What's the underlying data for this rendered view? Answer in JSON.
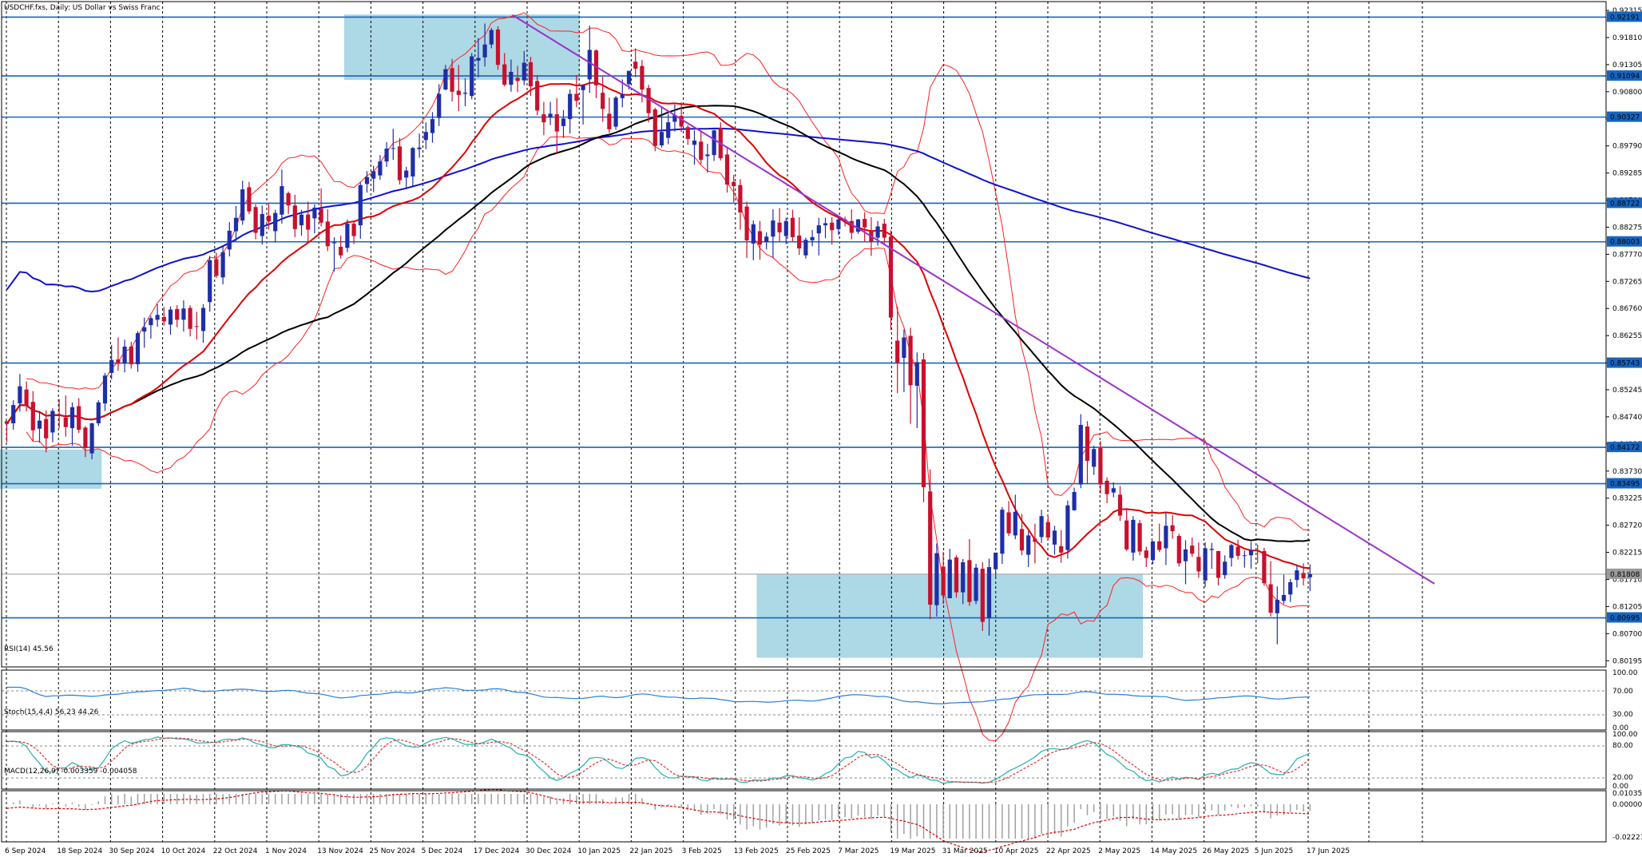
{
  "header": {
    "title": "USDCHF.fxs, Daily:  US Dollar vs Swiss Franc"
  },
  "indicators": {
    "rsi_label": "RSI(14) 45.56",
    "stoch_label": "Stoch(15,4,4) 56.23 44.26",
    "macd_label": "MACD(12,26,9) -0.003359 -0.004058"
  },
  "colors": {
    "background": "#ffffff",
    "bull_candle": "#1f2ea8",
    "bear_candle": "#c8102e",
    "support_resistance": "#1565c0",
    "zone_fill": "#add8e6",
    "trendline": "#9932cc",
    "ma_fast": "#e00000",
    "ma_mid": "#000000",
    "ma_slow": "#1010d0",
    "bollinger": "#ff2020",
    "rsi_line": "#2a7fd4",
    "stoch_main": "#20b2aa",
    "stoch_signal": "#e03030",
    "macd": "#a0a0a0"
  },
  "chart_data": {
    "type": "candlestick",
    "symbol": "USDCHF.fxs",
    "timeframe": "Daily",
    "ylim": [
      0.8005,
      0.9245
    ],
    "y_ticks": [
      "0.92315",
      "0.91810",
      "0.91305",
      "0.90800",
      "0.90295",
      "0.89790",
      "0.89285",
      "0.88780",
      "0.88275",
      "0.87770",
      "0.87265",
      "0.86760",
      "0.86255",
      "0.85750",
      "0.85245",
      "0.84740",
      "0.84235",
      "0.83730",
      "0.83225",
      "0.82720",
      "0.82215",
      "0.81710",
      "0.81205",
      "0.80700",
      "0.80195"
    ],
    "x_ticks": [
      "6 Sep 2024",
      "18 Sep 2024",
      "30 Sep 2024",
      "10 Oct 2024",
      "22 Oct 2024",
      "1 Nov 2024",
      "13 Nov 2024",
      "25 Nov 2024",
      "5 Dec 2024",
      "17 Dec 2024",
      "30 Dec 2024",
      "10 Jan 2025",
      "22 Jan 2025",
      "3 Feb 2025",
      "13 Feb 2025",
      "25 Feb 2025",
      "7 Mar 2025",
      "19 Mar 2025",
      "31 Mar 2025",
      "10 Apr 2025",
      "22 Apr 2025",
      "2 May 2025",
      "14 May 2025",
      "26 May 2025",
      "5 Jun 2025",
      "17 Jun 2025"
    ],
    "levels": [
      "0.92191",
      "0.91094",
      "0.90327",
      "0.88722",
      "0.88003",
      "0.85743",
      "0.84172",
      "0.83495",
      "0.80995"
    ],
    "current_price": "0.81808",
    "candles": [
      [
        0.8466,
        0.8466,
        0.8427,
        0.8461
      ],
      [
        0.8462,
        0.8505,
        0.845,
        0.8496
      ],
      [
        0.8499,
        0.8554,
        0.8484,
        0.8531
      ],
      [
        0.8525,
        0.854,
        0.8484,
        0.8494
      ],
      [
        0.8502,
        0.8522,
        0.8429,
        0.8449
      ],
      [
        0.8452,
        0.8485,
        0.8426,
        0.8467
      ],
      [
        0.847,
        0.8486,
        0.8408,
        0.8434
      ],
      [
        0.8445,
        0.849,
        0.8427,
        0.8485
      ],
      [
        0.8479,
        0.8507,
        0.8453,
        0.8477
      ],
      [
        0.8473,
        0.8514,
        0.8437,
        0.8455
      ],
      [
        0.8453,
        0.8501,
        0.842,
        0.8492
      ],
      [
        0.8494,
        0.8509,
        0.8444,
        0.845
      ],
      [
        0.8454,
        0.8457,
        0.8399,
        0.8416
      ],
      [
        0.8406,
        0.8463,
        0.8395,
        0.8462
      ],
      [
        0.8462,
        0.8505,
        0.8457,
        0.8501
      ],
      [
        0.8499,
        0.8556,
        0.8485,
        0.8551
      ],
      [
        0.8556,
        0.8608,
        0.8544,
        0.858
      ],
      [
        0.8581,
        0.8622,
        0.856,
        0.8573
      ],
      [
        0.8573,
        0.8618,
        0.8557,
        0.8605
      ],
      [
        0.8605,
        0.8614,
        0.8564,
        0.8572
      ],
      [
        0.8572,
        0.8634,
        0.8558,
        0.863
      ],
      [
        0.8633,
        0.8659,
        0.8603,
        0.8641
      ],
      [
        0.8645,
        0.8662,
        0.862,
        0.8658
      ],
      [
        0.8655,
        0.8684,
        0.8642,
        0.8664
      ],
      [
        0.866,
        0.8679,
        0.8644,
        0.8652
      ],
      [
        0.8646,
        0.868,
        0.8627,
        0.8674
      ],
      [
        0.8675,
        0.8682,
        0.8641,
        0.8655
      ],
      [
        0.8655,
        0.8691,
        0.8633,
        0.8676
      ],
      [
        0.8677,
        0.8682,
        0.8624,
        0.8638
      ],
      [
        0.8643,
        0.867,
        0.8618,
        0.8642
      ],
      [
        0.8634,
        0.8684,
        0.8612,
        0.8677
      ],
      [
        0.8688,
        0.8774,
        0.867,
        0.8766
      ],
      [
        0.8768,
        0.878,
        0.8733,
        0.8737
      ],
      [
        0.8734,
        0.8791,
        0.8721,
        0.8781
      ],
      [
        0.8786,
        0.8837,
        0.8773,
        0.8821
      ],
      [
        0.882,
        0.8867,
        0.8801,
        0.8845
      ],
      [
        0.884,
        0.8914,
        0.8832,
        0.8898
      ],
      [
        0.8902,
        0.8912,
        0.8852,
        0.8857
      ],
      [
        0.8865,
        0.887,
        0.8805,
        0.8817
      ],
      [
        0.8811,
        0.8868,
        0.8795,
        0.8852
      ],
      [
        0.8849,
        0.8872,
        0.8823,
        0.8838
      ],
      [
        0.882,
        0.886,
        0.8799,
        0.8854
      ],
      [
        0.8851,
        0.8935,
        0.8834,
        0.8904
      ],
      [
        0.8891,
        0.8894,
        0.8852,
        0.8868
      ],
      [
        0.8868,
        0.8888,
        0.8809,
        0.8824
      ],
      [
        0.8831,
        0.886,
        0.8812,
        0.8851
      ],
      [
        0.8851,
        0.8875,
        0.8801,
        0.8823
      ],
      [
        0.8844,
        0.887,
        0.8816,
        0.8864
      ],
      [
        0.8862,
        0.89,
        0.8829,
        0.8836
      ],
      [
        0.8838,
        0.8861,
        0.8783,
        0.8792
      ],
      [
        0.8798,
        0.8809,
        0.8745,
        0.8799
      ],
      [
        0.8791,
        0.8812,
        0.8769,
        0.8775
      ],
      [
        0.8789,
        0.8842,
        0.8781,
        0.8834
      ],
      [
        0.8834,
        0.884,
        0.8796,
        0.8811
      ],
      [
        0.8831,
        0.8911,
        0.8806,
        0.8906
      ],
      [
        0.8908,
        0.8932,
        0.8892,
        0.8921
      ],
      [
        0.8918,
        0.8942,
        0.8893,
        0.8932
      ],
      [
        0.8924,
        0.8962,
        0.8916,
        0.895
      ],
      [
        0.895,
        0.8986,
        0.894,
        0.8974
      ],
      [
        0.8974,
        0.9011,
        0.8953,
        0.8975
      ],
      [
        0.8978,
        0.8994,
        0.8907,
        0.8915
      ],
      [
        0.892,
        0.894,
        0.8901,
        0.8933
      ],
      [
        0.8922,
        0.8977,
        0.8903,
        0.8975
      ],
      [
        0.8973,
        0.9002,
        0.8957,
        0.8976
      ],
      [
        0.899,
        0.9023,
        0.8973,
        0.9005
      ],
      [
        0.9003,
        0.9042,
        0.8985,
        0.9029
      ],
      [
        0.9031,
        0.9094,
        0.9016,
        0.9076
      ],
      [
        0.9084,
        0.913,
        0.9083,
        0.9122
      ],
      [
        0.9124,
        0.9141,
        0.9062,
        0.908
      ],
      [
        0.9082,
        0.913,
        0.9044,
        0.9074
      ],
      [
        0.9076,
        0.9105,
        0.9053,
        0.9078
      ],
      [
        0.9072,
        0.9152,
        0.9066,
        0.9146
      ],
      [
        0.9138,
        0.918,
        0.9107,
        0.9143
      ],
      [
        0.9144,
        0.9207,
        0.9127,
        0.9168
      ],
      [
        0.9168,
        0.9199,
        0.9161,
        0.9195
      ],
      [
        0.9196,
        0.9202,
        0.9121,
        0.913
      ],
      [
        0.9131,
        0.9152,
        0.909,
        0.9093
      ],
      [
        0.9093,
        0.914,
        0.908,
        0.9117
      ],
      [
        0.9106,
        0.9128,
        0.9079,
        0.91
      ],
      [
        0.9101,
        0.9156,
        0.9092,
        0.9134
      ],
      [
        0.9135,
        0.9145,
        0.9072,
        0.909
      ],
      [
        0.91,
        0.9111,
        0.9036,
        0.9045
      ],
      [
        0.9038,
        0.9061,
        0.8999,
        0.9023
      ],
      [
        0.9032,
        0.9061,
        0.9018,
        0.9039
      ],
      [
        0.9038,
        0.9068,
        0.8965,
        0.9006
      ],
      [
        0.9016,
        0.9046,
        0.8994,
        0.903
      ],
      [
        0.9029,
        0.9084,
        0.9002,
        0.9076
      ],
      [
        0.9076,
        0.9111,
        0.9051,
        0.9063
      ],
      [
        0.9083,
        0.9094,
        0.9019,
        0.9092
      ],
      [
        0.9103,
        0.9203,
        0.9078,
        0.9158
      ],
      [
        0.9157,
        0.9159,
        0.9068,
        0.9092
      ],
      [
        0.9078,
        0.9109,
        0.9024,
        0.9048
      ],
      [
        0.9039,
        0.9069,
        0.9003,
        0.901
      ],
      [
        0.9015,
        0.9072,
        0.9009,
        0.9069
      ],
      [
        0.9068,
        0.9103,
        0.9051,
        0.9075
      ],
      [
        0.9094,
        0.9119,
        0.9084,
        0.9119
      ],
      [
        0.9136,
        0.9161,
        0.9107,
        0.9123
      ],
      [
        0.9128,
        0.9139,
        0.906,
        0.9084
      ],
      [
        0.9087,
        0.9093,
        0.9023,
        0.904
      ],
      [
        0.9047,
        0.905,
        0.8969,
        0.8979
      ],
      [
        0.898,
        0.905,
        0.8976,
        0.9005
      ],
      [
        0.8994,
        0.9039,
        0.8982,
        0.9023
      ],
      [
        0.9024,
        0.9056,
        0.9006,
        0.9036
      ],
      [
        0.9035,
        0.906,
        0.9005,
        0.9015
      ],
      [
        0.9014,
        0.9018,
        0.8981,
        0.8992
      ],
      [
        0.8981,
        0.9008,
        0.8944,
        0.8989
      ],
      [
        0.8987,
        0.9006,
        0.8945,
        0.8953
      ],
      [
        0.896,
        0.8983,
        0.8929,
        0.8963
      ],
      [
        0.8962,
        0.9009,
        0.8951,
        0.9008
      ],
      [
        0.9012,
        0.9023,
        0.8952,
        0.8956
      ],
      [
        0.8963,
        0.8978,
        0.8892,
        0.8907
      ],
      [
        0.8912,
        0.8925,
        0.8874,
        0.8904
      ],
      [
        0.8906,
        0.8917,
        0.8823,
        0.8855
      ],
      [
        0.8866,
        0.8875,
        0.877,
        0.8803
      ],
      [
        0.8797,
        0.884,
        0.8766,
        0.8833
      ],
      [
        0.882,
        0.8839,
        0.8767,
        0.8795
      ],
      [
        0.88,
        0.8818,
        0.8786,
        0.881
      ],
      [
        0.881,
        0.8861,
        0.877,
        0.884
      ],
      [
        0.8836,
        0.8863,
        0.8801,
        0.8818
      ],
      [
        0.8811,
        0.8845,
        0.8796,
        0.8839
      ],
      [
        0.8845,
        0.886,
        0.88,
        0.8809
      ],
      [
        0.8812,
        0.8846,
        0.8776,
        0.8788
      ],
      [
        0.8775,
        0.8808,
        0.8769,
        0.8804
      ],
      [
        0.8803,
        0.8822,
        0.8792,
        0.8809
      ],
      [
        0.8816,
        0.8845,
        0.8775,
        0.8831
      ],
      [
        0.8831,
        0.8845,
        0.8807,
        0.8835
      ],
      [
        0.8836,
        0.8846,
        0.8795,
        0.8822
      ],
      [
        0.8824,
        0.8844,
        0.8813,
        0.8842
      ],
      [
        0.8842,
        0.8847,
        0.8829,
        0.8838
      ],
      [
        0.8839,
        0.8861,
        0.8805,
        0.8817
      ],
      [
        0.8819,
        0.8843,
        0.8815,
        0.8842
      ],
      [
        0.8843,
        0.8855,
        0.88,
        0.8827
      ],
      [
        0.882,
        0.8846,
        0.8774,
        0.88
      ],
      [
        0.8808,
        0.8839,
        0.8793,
        0.8829
      ],
      [
        0.8834,
        0.8843,
        0.8797,
        0.8808
      ],
      [
        0.881,
        0.8822,
        0.8636,
        0.8659
      ],
      [
        0.8616,
        0.868,
        0.8518,
        0.8575
      ],
      [
        0.8584,
        0.8637,
        0.852,
        0.8622
      ],
      [
        0.8625,
        0.864,
        0.8461,
        0.8533
      ],
      [
        0.8532,
        0.8594,
        0.8453,
        0.8576
      ],
      [
        0.8581,
        0.8593,
        0.8315,
        0.8343
      ],
      [
        0.8335,
        0.8376,
        0.8097,
        0.8124
      ],
      [
        0.8123,
        0.8238,
        0.8102,
        0.822
      ],
      [
        0.8195,
        0.8222,
        0.8125,
        0.8141
      ],
      [
        0.8136,
        0.8228,
        0.8136,
        0.8208
      ],
      [
        0.8212,
        0.8216,
        0.8137,
        0.8147
      ],
      [
        0.8147,
        0.8209,
        0.8125,
        0.8203
      ],
      [
        0.8207,
        0.8246,
        0.8122,
        0.8129
      ],
      [
        0.8131,
        0.82,
        0.8125,
        0.8193
      ],
      [
        0.8191,
        0.8203,
        0.8075,
        0.8092
      ],
      [
        0.8099,
        0.821,
        0.8066,
        0.8194
      ],
      [
        0.819,
        0.8221,
        0.8176,
        0.8221
      ],
      [
        0.8219,
        0.8306,
        0.82,
        0.8301
      ],
      [
        0.8296,
        0.8317,
        0.8252,
        0.8257
      ],
      [
        0.8253,
        0.8329,
        0.8246,
        0.8297
      ],
      [
        0.8265,
        0.8293,
        0.8216,
        0.8225
      ],
      [
        0.8217,
        0.8261,
        0.8194,
        0.8253
      ],
      [
        0.8247,
        0.8275,
        0.8201,
        0.8241
      ],
      [
        0.825,
        0.8301,
        0.8239,
        0.8289
      ],
      [
        0.8278,
        0.8289,
        0.8244,
        0.8249
      ],
      [
        0.8236,
        0.8271,
        0.8217,
        0.8262
      ],
      [
        0.8233,
        0.8263,
        0.8202,
        0.8221
      ],
      [
        0.8226,
        0.8318,
        0.821,
        0.8309
      ],
      [
        0.83,
        0.8342,
        0.8299,
        0.8334
      ],
      [
        0.8348,
        0.8479,
        0.8341,
        0.8459
      ],
      [
        0.8456,
        0.8466,
        0.8349,
        0.8392
      ],
      [
        0.8381,
        0.842,
        0.8366,
        0.8414
      ],
      [
        0.8416,
        0.8429,
        0.8331,
        0.8348
      ],
      [
        0.8355,
        0.8361,
        0.8313,
        0.833
      ],
      [
        0.8333,
        0.8352,
        0.8324,
        0.8341
      ],
      [
        0.8329,
        0.8345,
        0.828,
        0.829
      ],
      [
        0.8281,
        0.8304,
        0.8224,
        0.8227
      ],
      [
        0.8221,
        0.8289,
        0.8206,
        0.8282
      ],
      [
        0.8276,
        0.8282,
        0.8216,
        0.8223
      ],
      [
        0.8225,
        0.8232,
        0.8194,
        0.8211
      ],
      [
        0.8207,
        0.8243,
        0.82,
        0.8242
      ],
      [
        0.8242,
        0.8275,
        0.8222,
        0.8226
      ],
      [
        0.8229,
        0.8297,
        0.8198,
        0.8271
      ],
      [
        0.8272,
        0.8291,
        0.8247,
        0.8261
      ],
      [
        0.8252,
        0.8256,
        0.8195,
        0.8201
      ],
      [
        0.8205,
        0.8244,
        0.8162,
        0.8227
      ],
      [
        0.8234,
        0.8249,
        0.8213,
        0.8219
      ],
      [
        0.8213,
        0.824,
        0.8174,
        0.8186
      ],
      [
        0.8169,
        0.824,
        0.8157,
        0.8229
      ],
      [
        0.8226,
        0.8239,
        0.8191,
        0.8228
      ],
      [
        0.8224,
        0.8224,
        0.816,
        0.8174
      ],
      [
        0.8179,
        0.8216,
        0.8172,
        0.8204
      ],
      [
        0.8211,
        0.8237,
        0.8195,
        0.8235
      ],
      [
        0.8232,
        0.8245,
        0.8208,
        0.8215
      ],
      [
        0.8215,
        0.8225,
        0.8193,
        0.8216
      ],
      [
        0.8216,
        0.8241,
        0.8191,
        0.8225
      ],
      [
        0.8225,
        0.8236,
        0.8201,
        0.8224
      ],
      [
        0.8224,
        0.823,
        0.8159,
        0.8164
      ],
      [
        0.8162,
        0.8205,
        0.8102,
        0.8109
      ],
      [
        0.8108,
        0.8158,
        0.805,
        0.8133
      ],
      [
        0.8131,
        0.818,
        0.8125,
        0.8142
      ],
      [
        0.8143,
        0.8172,
        0.8129,
        0.8166
      ],
      [
        0.817,
        0.8198,
        0.8156,
        0.8188
      ],
      [
        0.8183,
        0.8201,
        0.816,
        0.8173
      ],
      [
        0.8175,
        0.8199,
        0.8149,
        0.8181
      ]
    ]
  }
}
